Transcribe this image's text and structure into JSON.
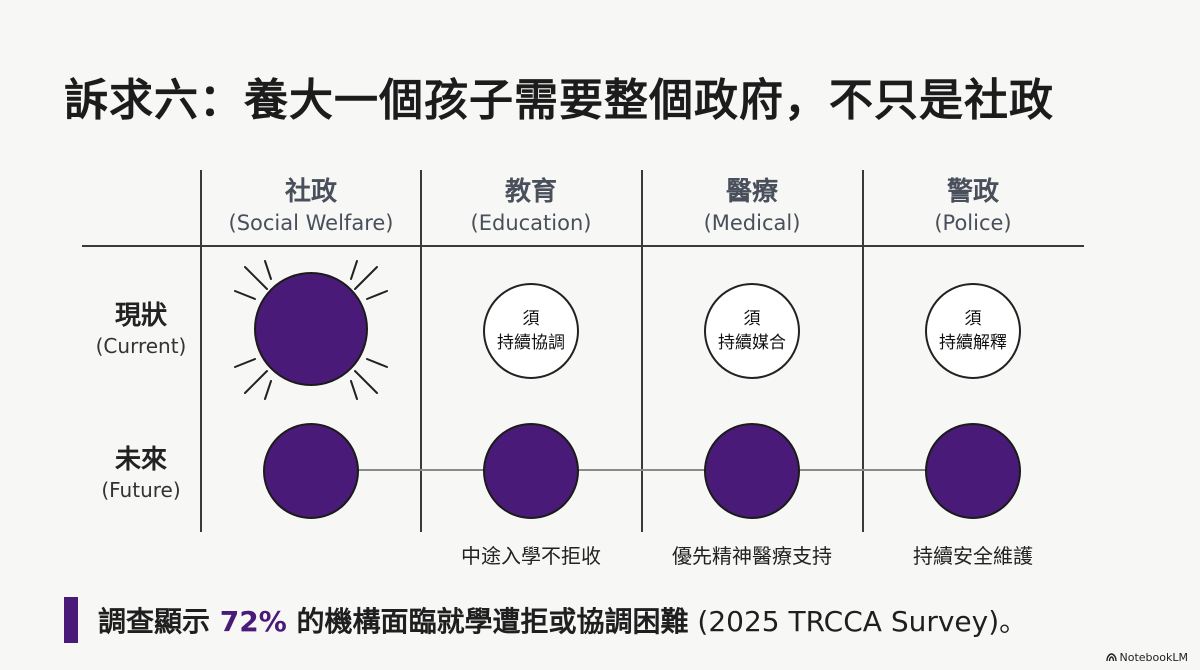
{
  "title": "訴求六：養大一個孩子需要整個政府，不只是社政",
  "columns": [
    {
      "zh": "社政",
      "en": "(Social Welfare)"
    },
    {
      "zh": "教育",
      "en": "(Education)"
    },
    {
      "zh": "醫療",
      "en": "(Medical)"
    },
    {
      "zh": "警政",
      "en": "(Police)"
    }
  ],
  "rows": [
    {
      "zh": "現狀",
      "en": "(Current)"
    },
    {
      "zh": "未來",
      "en": "(Future)"
    }
  ],
  "current_rings": [
    {
      "line1": "須",
      "line2": "持續協調"
    },
    {
      "line1": "須",
      "line2": "持續媒合"
    },
    {
      "line1": "須",
      "line2": "持續解釋"
    }
  ],
  "future_notes": [
    "中途入學不拒收",
    "優先精神醫療支持",
    "持續安全維護"
  ],
  "footer": {
    "lead": "調查顯示 ",
    "percent": "72%",
    "rest_bold": " 的機構面臨就學遭拒或協調困難",
    "source": " (2025 TRCCA Survey)。"
  },
  "brand": "NotebookLM",
  "colors": {
    "accent": "#4a1a78",
    "line": "#3a3a3a"
  }
}
